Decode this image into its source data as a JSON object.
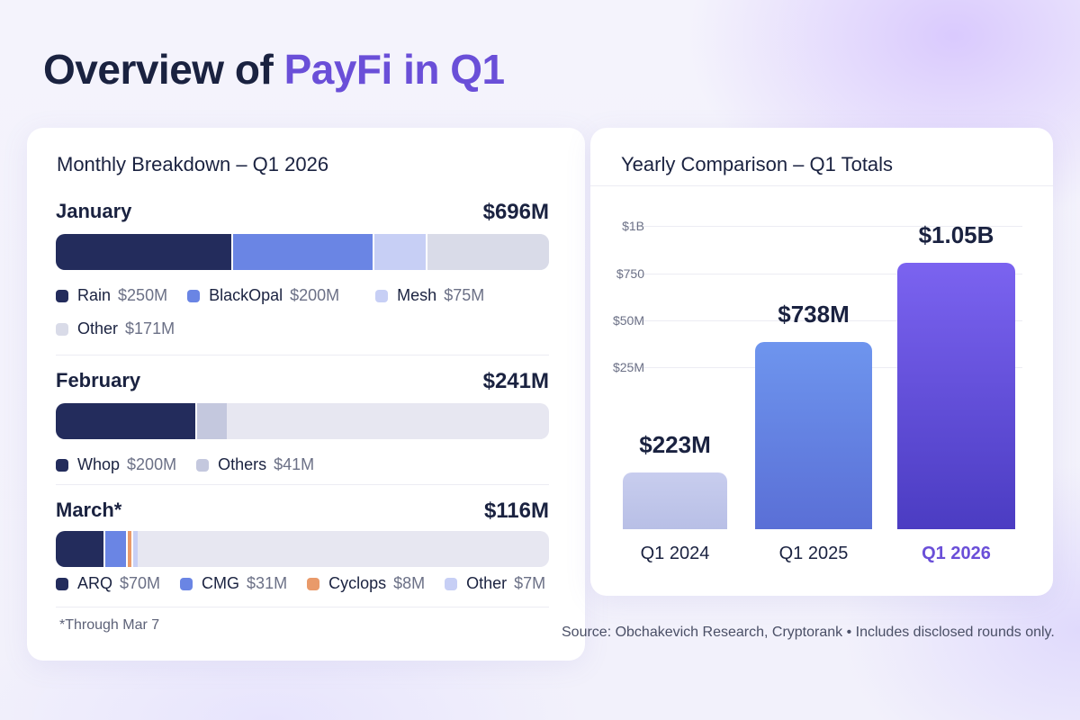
{
  "page": {
    "title_main": "Overview of ",
    "title_accent": "PayFi in Q1",
    "source": "Source: Obchakevich Research, Cryptorank • Includes disclosed rounds only."
  },
  "colors": {
    "navy": "#232c5c",
    "blue": "#6a85e4",
    "light_blue": "#c7cff5",
    "gray": "#d9dbe8",
    "orange": "#e99a6a",
    "purple": "#6a4fd8"
  },
  "chart_data": [
    {
      "type": "bar",
      "orientation": "horizontal-stacked",
      "title": "Monthly Breakdown – Q1 2026",
      "footnote": "*Through Mar 7",
      "months": [
        {
          "name": "January",
          "total_label": "$696M",
          "total": 696,
          "segments": [
            {
              "name": "Rain",
              "label": "$250M",
              "value": 250,
              "color": "#232c5c"
            },
            {
              "name": "BlackOpal",
              "label": "$200M",
              "value": 200,
              "color": "#6a85e4"
            },
            {
              "name": "Mesh",
              "label": "$75M",
              "value": 75,
              "color": "#c7cff5"
            },
            {
              "name": "Other",
              "label": "$171M",
              "value": 171,
              "color": "#d9dbe8"
            }
          ]
        },
        {
          "name": "February",
          "total_label": "$241M",
          "total": 241,
          "segments": [
            {
              "name": "Whop",
              "label": "$200M",
              "value": 200,
              "color": "#232c5c"
            },
            {
              "name": "Others",
              "label": "$41M",
              "value": 41,
              "color": "#c4c8de"
            }
          ]
        },
        {
          "name": "March*",
          "total_label": "$116M",
          "total": 116,
          "segments": [
            {
              "name": "ARQ",
              "label": "$70M",
              "value": 70,
              "color": "#232c5c"
            },
            {
              "name": "CMG",
              "label": "$31M",
              "value": 31,
              "color": "#6a85e4"
            },
            {
              "name": "Cyclops",
              "label": "$8M",
              "value": 8,
              "color": "#e99a6a"
            },
            {
              "name": "Other",
              "label": "$7M",
              "value": 7,
              "color": "#c7cff5"
            }
          ]
        }
      ],
      "bar_scale_max": 696
    },
    {
      "type": "bar",
      "title": "Yearly Comparison – Q1 Totals",
      "categories": [
        "Q1 2024",
        "Q1 2025",
        "Q1 2026"
      ],
      "values": [
        223,
        738,
        1050
      ],
      "value_labels": [
        "$223M",
        "$738M",
        "$1.05B"
      ],
      "highlight_index": 2,
      "yticks": [
        "$25M",
        "$50M",
        "$750",
        "$1B"
      ],
      "ylim": [
        0,
        1200
      ]
    }
  ]
}
